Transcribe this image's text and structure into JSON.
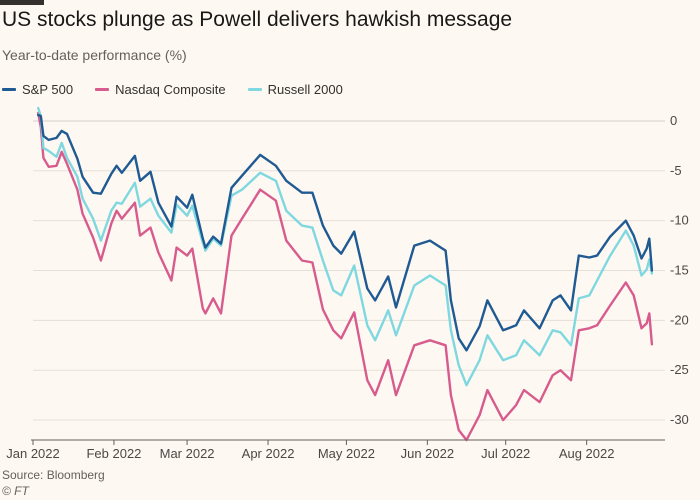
{
  "title": "US stocks plunge as Powell delivers hawkish message",
  "subtitle": "Year-to-date performance (%)",
  "source": "Source: Bloomberg",
  "credit": "© FT",
  "chart_data": {
    "type": "line",
    "xlabel": "",
    "ylabel": "",
    "x_ticks": [
      "Jan 2022",
      "Feb 2022",
      "Mar 2022",
      "Apr 2022",
      "May 2022",
      "Jun 2022",
      "Jul 2022",
      "Aug 2022"
    ],
    "y_ticks": [
      0,
      -5,
      -10,
      -15,
      -20,
      -25,
      -30
    ],
    "ylim": [
      -32,
      1.5
    ],
    "xlim": [
      "2022-01-01",
      "2022-08-31"
    ],
    "grid": true,
    "legend_position": "top-left",
    "series": [
      {
        "name": "S&P 500",
        "color": "#1f5a93",
        "points": [
          [
            "2022-01-03",
            0.6
          ],
          [
            "2022-01-04",
            0.5
          ],
          [
            "2022-01-05",
            -1.5
          ],
          [
            "2022-01-07",
            -1.9
          ],
          [
            "2022-01-10",
            -1.7
          ],
          [
            "2022-01-12",
            -1.0
          ],
          [
            "2022-01-14",
            -1.3
          ],
          [
            "2022-01-18",
            -3.8
          ],
          [
            "2022-01-20",
            -5.6
          ],
          [
            "2022-01-24",
            -7.2
          ],
          [
            "2022-01-27",
            -7.3
          ],
          [
            "2022-01-31",
            -5.3
          ],
          [
            "2022-02-02",
            -4.5
          ],
          [
            "2022-02-04",
            -5.2
          ],
          [
            "2022-02-09",
            -3.5
          ],
          [
            "2022-02-11",
            -6.0
          ],
          [
            "2022-02-15",
            -5.1
          ],
          [
            "2022-02-18",
            -8.2
          ],
          [
            "2022-02-23",
            -10.6
          ],
          [
            "2022-02-25",
            -7.6
          ],
          [
            "2022-03-01",
            -8.7
          ],
          [
            "2022-03-03",
            -7.4
          ],
          [
            "2022-03-07",
            -11.8
          ],
          [
            "2022-03-08",
            -12.7
          ],
          [
            "2022-03-11",
            -11.6
          ],
          [
            "2022-03-14",
            -12.3
          ],
          [
            "2022-03-18",
            -6.7
          ],
          [
            "2022-03-22",
            -5.5
          ],
          [
            "2022-03-29",
            -3.4
          ],
          [
            "2022-04-04",
            -4.5
          ],
          [
            "2022-04-08",
            -6.0
          ],
          [
            "2022-04-14",
            -7.2
          ],
          [
            "2022-04-18",
            -7.2
          ],
          [
            "2022-04-22",
            -10.5
          ],
          [
            "2022-04-26",
            -12.5
          ],
          [
            "2022-04-29",
            -13.3
          ],
          [
            "2022-05-04",
            -11.1
          ],
          [
            "2022-05-09",
            -16.8
          ],
          [
            "2022-05-12",
            -18.0
          ],
          [
            "2022-05-17",
            -15.6
          ],
          [
            "2022-05-20",
            -18.7
          ],
          [
            "2022-05-27",
            -12.5
          ],
          [
            "2022-06-02",
            -12.0
          ],
          [
            "2022-06-08",
            -13.0
          ],
          [
            "2022-06-10",
            -18.0
          ],
          [
            "2022-06-13",
            -21.8
          ],
          [
            "2022-06-16",
            -23.0
          ],
          [
            "2022-06-21",
            -20.6
          ],
          [
            "2022-06-24",
            -18.0
          ],
          [
            "2022-06-30",
            -21.0
          ],
          [
            "2022-07-05",
            -20.5
          ],
          [
            "2022-07-08",
            -19.0
          ],
          [
            "2022-07-14",
            -20.8
          ],
          [
            "2022-07-19",
            -18.0
          ],
          [
            "2022-07-22",
            -17.5
          ],
          [
            "2022-07-26",
            -19.0
          ],
          [
            "2022-07-29",
            -13.5
          ],
          [
            "2022-08-02",
            -13.7
          ],
          [
            "2022-08-05",
            -13.5
          ],
          [
            "2022-08-10",
            -11.6
          ],
          [
            "2022-08-16",
            -10.0
          ],
          [
            "2022-08-19",
            -11.5
          ],
          [
            "2022-08-22",
            -13.8
          ],
          [
            "2022-08-24",
            -12.8
          ],
          [
            "2022-08-25",
            -11.8
          ],
          [
            "2022-08-26",
            -15.0
          ]
        ]
      },
      {
        "name": "Nasdaq Composite",
        "color": "#d75c8d",
        "points": [
          [
            "2022-01-03",
            0.8
          ],
          [
            "2022-01-04",
            -0.6
          ],
          [
            "2022-01-05",
            -3.7
          ],
          [
            "2022-01-07",
            -4.6
          ],
          [
            "2022-01-10",
            -4.5
          ],
          [
            "2022-01-12",
            -3.1
          ],
          [
            "2022-01-14",
            -4.3
          ],
          [
            "2022-01-18",
            -6.9
          ],
          [
            "2022-01-20",
            -9.3
          ],
          [
            "2022-01-24",
            -11.7
          ],
          [
            "2022-01-27",
            -14.0
          ],
          [
            "2022-01-31",
            -10.3
          ],
          [
            "2022-02-02",
            -9.0
          ],
          [
            "2022-02-04",
            -9.8
          ],
          [
            "2022-02-09",
            -8.2
          ],
          [
            "2022-02-11",
            -11.5
          ],
          [
            "2022-02-15",
            -10.7
          ],
          [
            "2022-02-18",
            -13.2
          ],
          [
            "2022-02-23",
            -16.0
          ],
          [
            "2022-02-25",
            -12.7
          ],
          [
            "2022-03-01",
            -13.5
          ],
          [
            "2022-03-03",
            -12.8
          ],
          [
            "2022-03-07",
            -18.8
          ],
          [
            "2022-03-08",
            -19.3
          ],
          [
            "2022-03-11",
            -17.8
          ],
          [
            "2022-03-14",
            -19.3
          ],
          [
            "2022-03-18",
            -11.5
          ],
          [
            "2022-03-22",
            -9.8
          ],
          [
            "2022-03-29",
            -6.9
          ],
          [
            "2022-04-04",
            -8.0
          ],
          [
            "2022-04-08",
            -12.0
          ],
          [
            "2022-04-14",
            -14.0
          ],
          [
            "2022-04-18",
            -14.2
          ],
          [
            "2022-04-22",
            -18.9
          ],
          [
            "2022-04-26",
            -21.0
          ],
          [
            "2022-04-29",
            -21.8
          ],
          [
            "2022-05-04",
            -19.2
          ],
          [
            "2022-05-09",
            -26.0
          ],
          [
            "2022-05-12",
            -27.5
          ],
          [
            "2022-05-17",
            -24.0
          ],
          [
            "2022-05-20",
            -27.5
          ],
          [
            "2022-05-27",
            -22.5
          ],
          [
            "2022-06-02",
            -22.0
          ],
          [
            "2022-06-08",
            -22.5
          ],
          [
            "2022-06-10",
            -27.5
          ],
          [
            "2022-06-13",
            -31.0
          ],
          [
            "2022-06-16",
            -32.0
          ],
          [
            "2022-06-21",
            -29.5
          ],
          [
            "2022-06-24",
            -27.0
          ],
          [
            "2022-06-30",
            -30.0
          ],
          [
            "2022-07-05",
            -28.5
          ],
          [
            "2022-07-08",
            -27.0
          ],
          [
            "2022-07-14",
            -28.2
          ],
          [
            "2022-07-19",
            -25.5
          ],
          [
            "2022-07-22",
            -25.0
          ],
          [
            "2022-07-26",
            -26.0
          ],
          [
            "2022-07-29",
            -21.0
          ],
          [
            "2022-08-02",
            -20.8
          ],
          [
            "2022-08-05",
            -20.5
          ],
          [
            "2022-08-10",
            -18.5
          ],
          [
            "2022-08-16",
            -16.2
          ],
          [
            "2022-08-19",
            -17.5
          ],
          [
            "2022-08-22",
            -20.8
          ],
          [
            "2022-08-24",
            -20.3
          ],
          [
            "2022-08-25",
            -19.3
          ],
          [
            "2022-08-26",
            -22.4
          ]
        ]
      },
      {
        "name": "Russell 2000",
        "color": "#7fd8e0",
        "points": [
          [
            "2022-01-03",
            1.3
          ],
          [
            "2022-01-04",
            0.5
          ],
          [
            "2022-01-05",
            -2.7
          ],
          [
            "2022-01-07",
            -3.0
          ],
          [
            "2022-01-10",
            -3.6
          ],
          [
            "2022-01-12",
            -2.2
          ],
          [
            "2022-01-14",
            -3.7
          ],
          [
            "2022-01-18",
            -5.6
          ],
          [
            "2022-01-20",
            -7.8
          ],
          [
            "2022-01-24",
            -9.8
          ],
          [
            "2022-01-27",
            -12.0
          ],
          [
            "2022-01-31",
            -9.0
          ],
          [
            "2022-02-02",
            -8.2
          ],
          [
            "2022-02-04",
            -8.3
          ],
          [
            "2022-02-09",
            -6.2
          ],
          [
            "2022-02-11",
            -8.6
          ],
          [
            "2022-02-15",
            -7.8
          ],
          [
            "2022-02-18",
            -9.5
          ],
          [
            "2022-02-23",
            -11.2
          ],
          [
            "2022-02-25",
            -8.4
          ],
          [
            "2022-03-01",
            -9.5
          ],
          [
            "2022-03-03",
            -8.5
          ],
          [
            "2022-03-07",
            -12.2
          ],
          [
            "2022-03-08",
            -13.0
          ],
          [
            "2022-03-11",
            -11.8
          ],
          [
            "2022-03-14",
            -12.5
          ],
          [
            "2022-03-18",
            -7.5
          ],
          [
            "2022-03-22",
            -6.9
          ],
          [
            "2022-03-29",
            -5.2
          ],
          [
            "2022-04-04",
            -6.0
          ],
          [
            "2022-04-08",
            -9.0
          ],
          [
            "2022-04-14",
            -10.5
          ],
          [
            "2022-04-18",
            -10.7
          ],
          [
            "2022-04-22",
            -14.0
          ],
          [
            "2022-04-26",
            -17.0
          ],
          [
            "2022-04-29",
            -17.5
          ],
          [
            "2022-05-04",
            -14.5
          ],
          [
            "2022-05-09",
            -20.5
          ],
          [
            "2022-05-12",
            -22.0
          ],
          [
            "2022-05-17",
            -19.0
          ],
          [
            "2022-05-20",
            -21.5
          ],
          [
            "2022-05-27",
            -16.5
          ],
          [
            "2022-06-02",
            -15.5
          ],
          [
            "2022-06-08",
            -16.5
          ],
          [
            "2022-06-10",
            -21.0
          ],
          [
            "2022-06-13",
            -24.5
          ],
          [
            "2022-06-16",
            -26.5
          ],
          [
            "2022-06-21",
            -24.0
          ],
          [
            "2022-06-24",
            -21.5
          ],
          [
            "2022-06-30",
            -24.0
          ],
          [
            "2022-07-05",
            -23.5
          ],
          [
            "2022-07-08",
            -22.0
          ],
          [
            "2022-07-14",
            -23.5
          ],
          [
            "2022-07-19",
            -21.0
          ],
          [
            "2022-07-22",
            -21.2
          ],
          [
            "2022-07-26",
            -22.5
          ],
          [
            "2022-07-29",
            -17.8
          ],
          [
            "2022-08-02",
            -17.5
          ],
          [
            "2022-08-05",
            -16.0
          ],
          [
            "2022-08-10",
            -13.5
          ],
          [
            "2022-08-16",
            -11.0
          ],
          [
            "2022-08-19",
            -12.5
          ],
          [
            "2022-08-22",
            -15.5
          ],
          [
            "2022-08-24",
            -14.9
          ],
          [
            "2022-08-25",
            -13.9
          ],
          [
            "2022-08-26",
            -15.3
          ]
        ]
      }
    ]
  }
}
